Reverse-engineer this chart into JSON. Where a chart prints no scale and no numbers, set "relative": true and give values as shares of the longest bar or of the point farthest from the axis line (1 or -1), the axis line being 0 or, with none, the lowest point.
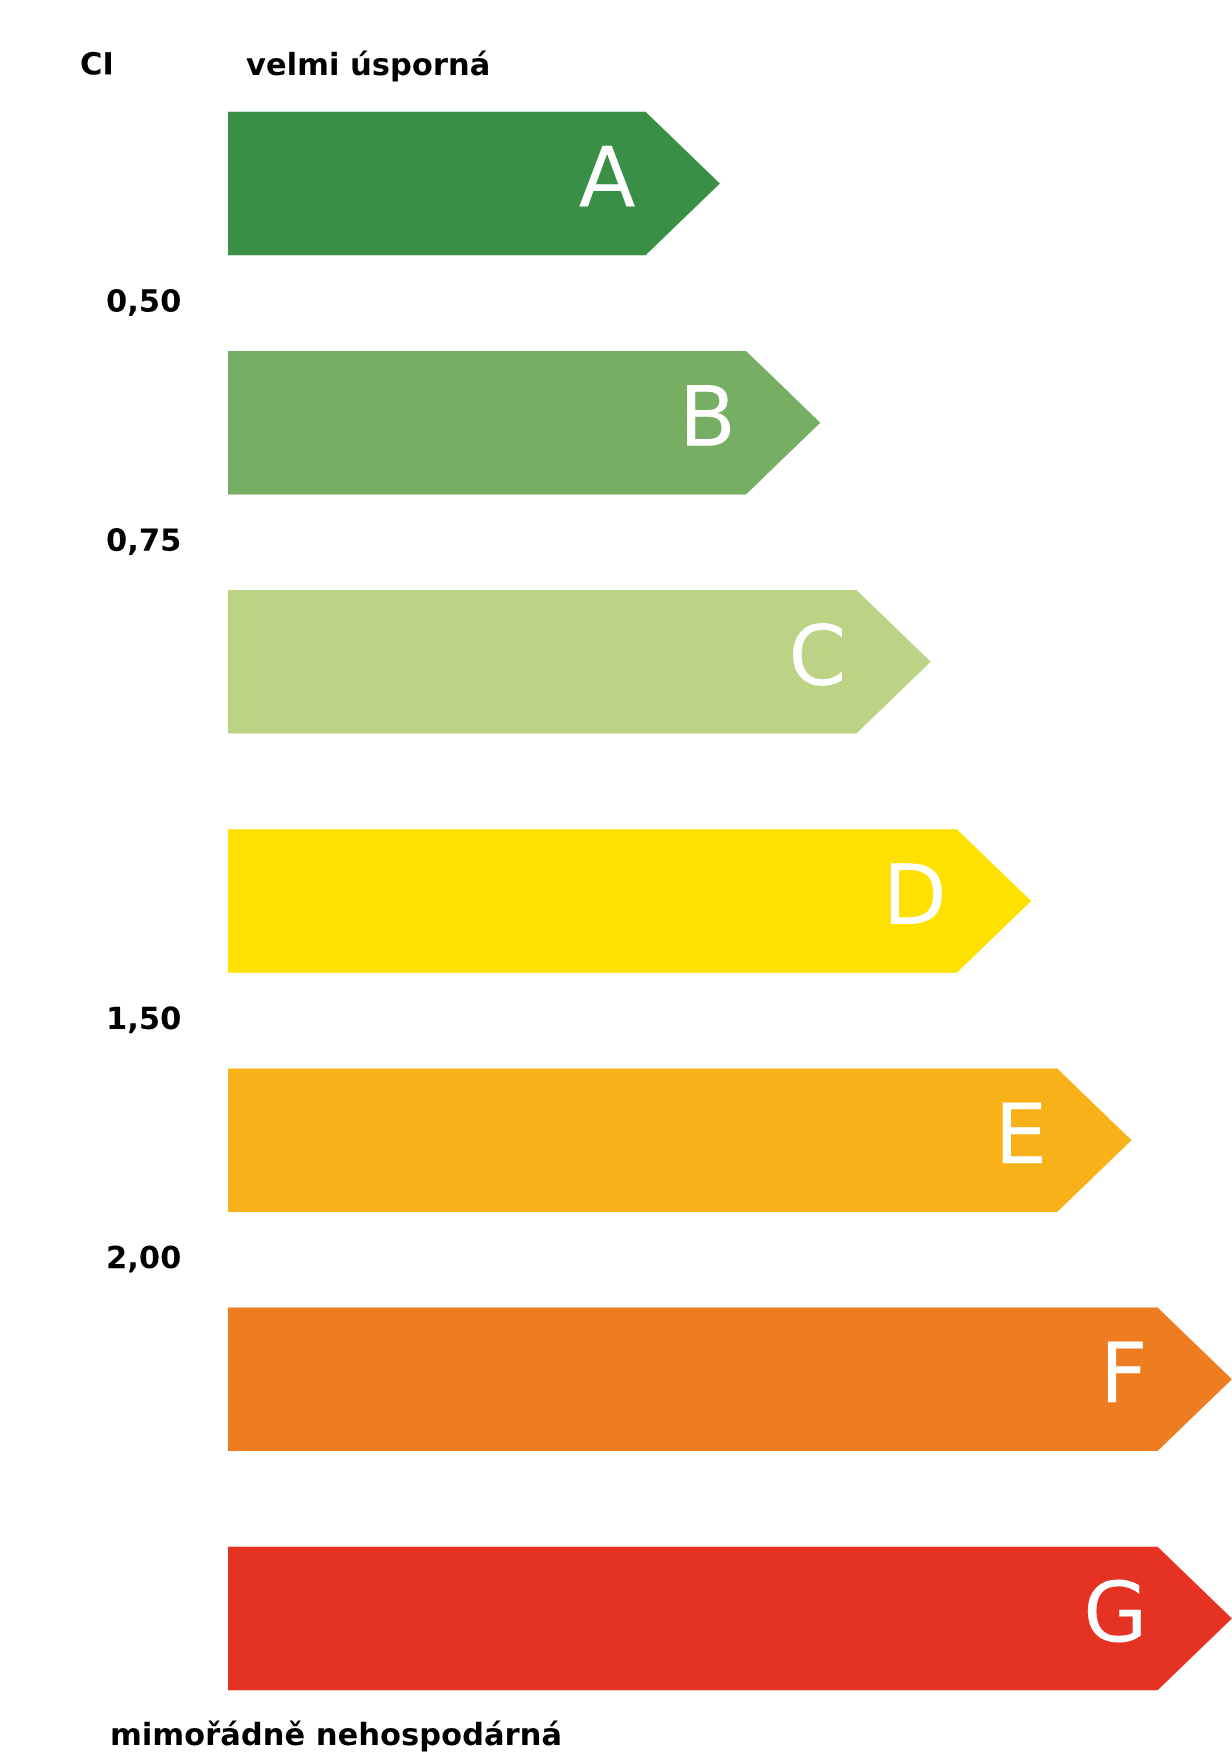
{
  "chart_data": {
    "type": "bar",
    "orientation": "horizontal",
    "relative": true,
    "ylabel": "CI",
    "categories": [
      "A",
      "B",
      "C",
      "D",
      "E",
      "F",
      "G"
    ],
    "values": [
      0.49,
      0.59,
      0.7,
      0.8,
      0.9,
      1,
      1
    ],
    "colors": [
      "#3a8f47",
      "#76ae64",
      "#bcd385",
      "#fee100",
      "#f8b118",
      "#ee7d22",
      "#e53223"
    ],
    "annotations": [
      "velmi úsporná",
      "0,50",
      "0,75",
      "1,50",
      "2,00",
      "mimořádně nehospodárná"
    ]
  }
}
